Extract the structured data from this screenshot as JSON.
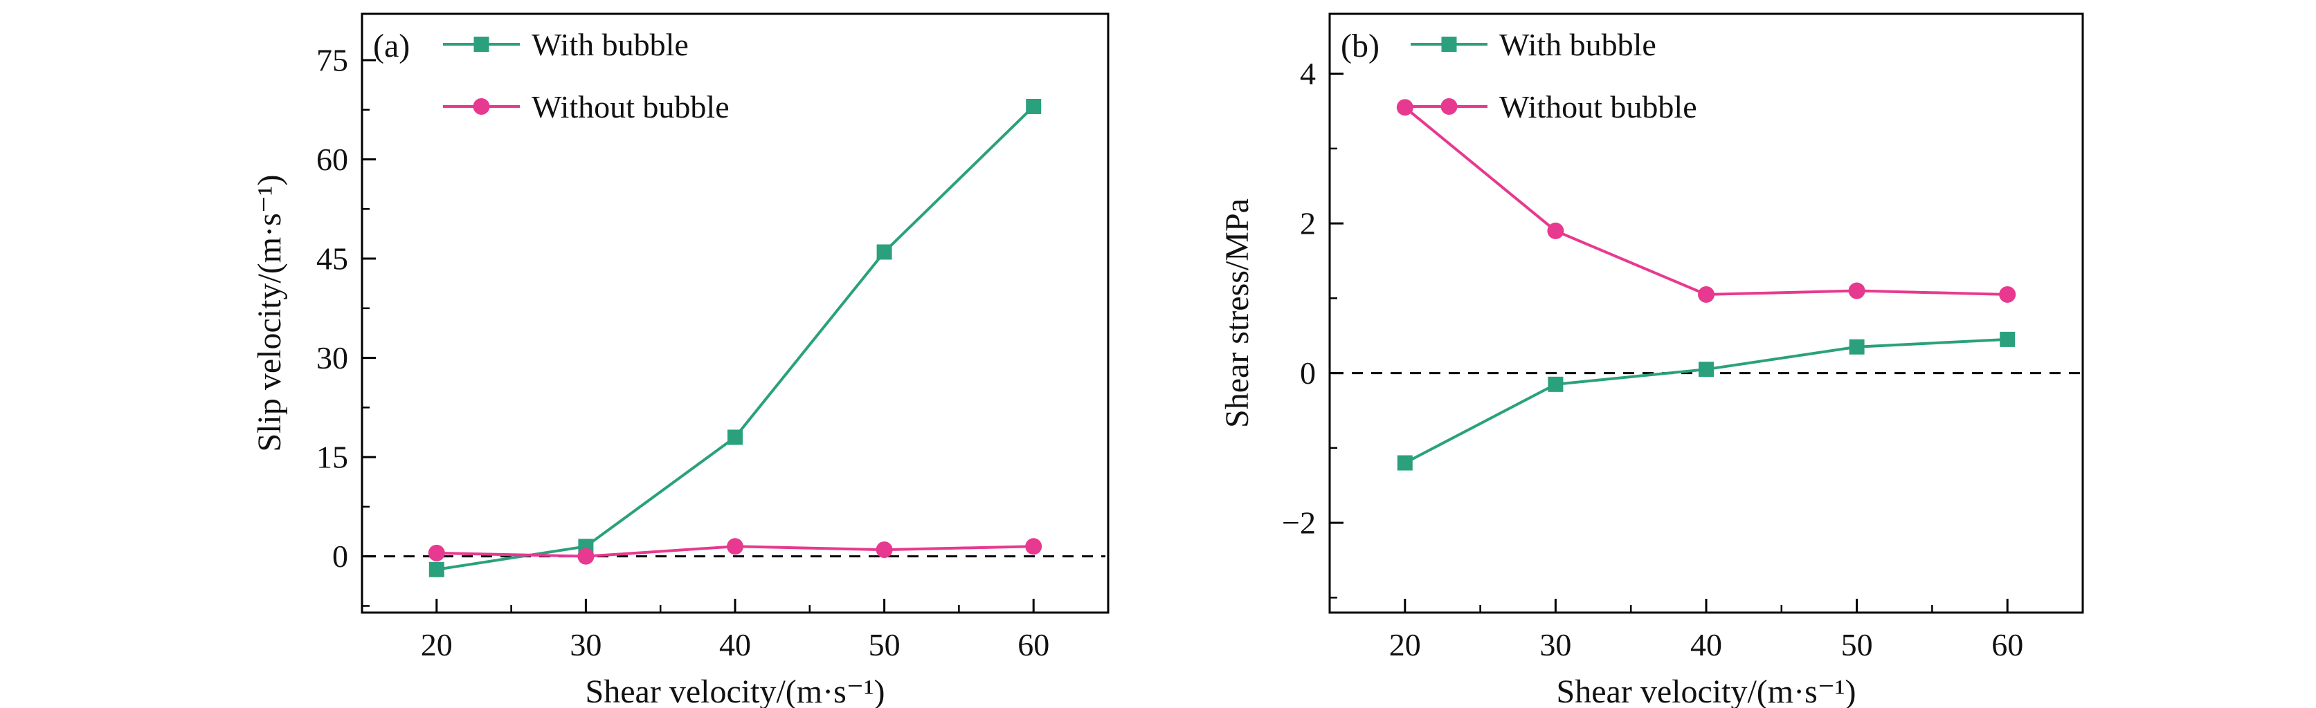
{
  "figure": {
    "background": "#ffffff",
    "axis_color": "#000000",
    "zero_line_style": "dashed"
  },
  "chart_data": [
    {
      "type": "line",
      "panel_label": "(a)",
      "xlabel": "Shear velocity/(m·s⁻¹)",
      "ylabel": "Slip velocity/(m·s⁻¹)",
      "xlim": [
        15,
        65
      ],
      "ylim": [
        -8.5,
        82
      ],
      "xticks": [
        20,
        30,
        40,
        50,
        60
      ],
      "yticks": [
        0,
        15,
        30,
        45,
        60,
        75
      ],
      "x_minor": [
        25,
        35,
        45,
        55
      ],
      "y_minor": [
        -7.5,
        7.5,
        22.5,
        37.5,
        52.5,
        67.5
      ],
      "grid": false,
      "zero_line": true,
      "legend_position": "top-left-inside",
      "x": [
        20,
        30,
        40,
        50,
        60
      ],
      "series": [
        {
          "name": "With bubble",
          "marker": "square",
          "color": "#2aa17c",
          "values": [
            -2.0,
            1.5,
            18.0,
            46.0,
            68.0
          ]
        },
        {
          "name": "Without bubble",
          "marker": "circle",
          "color": "#e7398f",
          "values": [
            0.5,
            0.0,
            1.5,
            1.0,
            1.5
          ]
        }
      ]
    },
    {
      "type": "line",
      "panel_label": "(b)",
      "xlabel": "Shear velocity/(m·s⁻¹)",
      "ylabel": "Shear stress/MPa",
      "xlim": [
        15,
        65
      ],
      "ylim": [
        -3.2,
        4.8
      ],
      "xticks": [
        20,
        30,
        40,
        50,
        60
      ],
      "yticks": [
        -2,
        0,
        2,
        4
      ],
      "x_minor": [
        25,
        35,
        45,
        55
      ],
      "y_minor": [
        -3,
        -1,
        1,
        3
      ],
      "grid": false,
      "zero_line": true,
      "legend_position": "top-left-inside",
      "x": [
        20,
        30,
        40,
        50,
        60
      ],
      "series": [
        {
          "name": "With bubble",
          "marker": "square",
          "color": "#2aa17c",
          "values": [
            -1.2,
            -0.15,
            0.05,
            0.35,
            0.45
          ]
        },
        {
          "name": "Without bubble",
          "marker": "circle",
          "color": "#e7398f",
          "values": [
            3.55,
            1.9,
            1.05,
            1.1,
            1.05
          ]
        }
      ]
    }
  ]
}
